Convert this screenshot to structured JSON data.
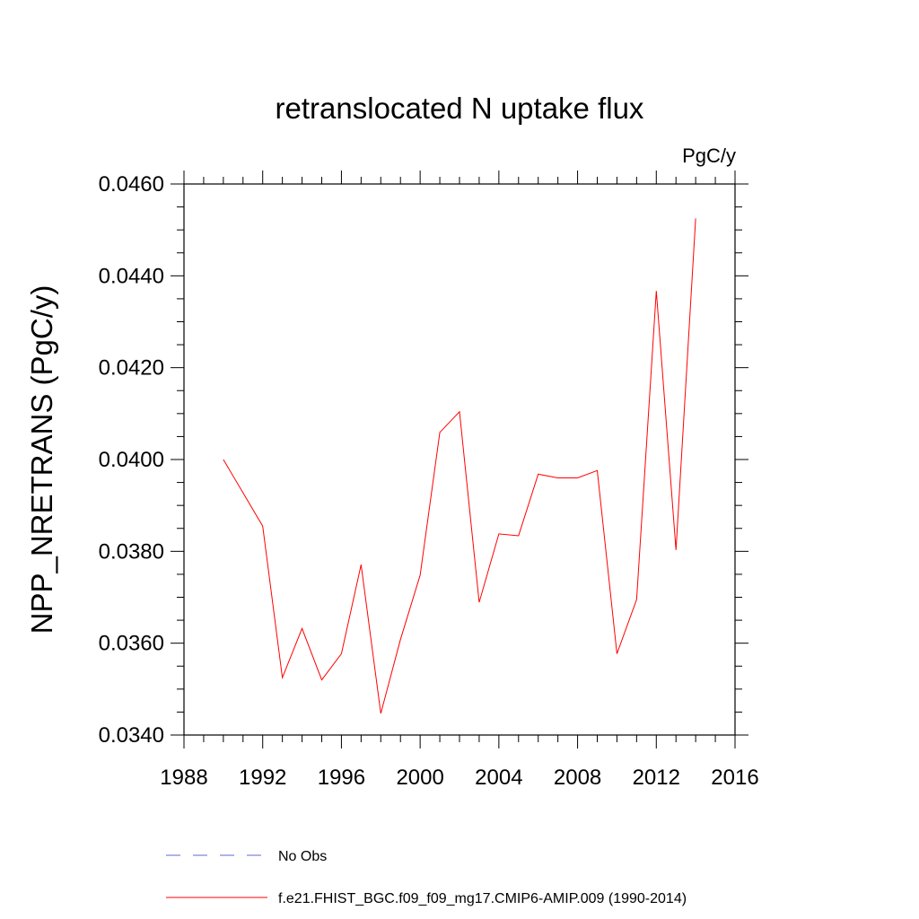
{
  "chart_data": {
    "type": "line",
    "title": "retranslocated N uptake flux",
    "units_label": "PgC/y",
    "xlabel": "",
    "ylabel": "NPP_NRETRANS  (PgC/y)",
    "xlim": [
      1988,
      2016
    ],
    "ylim": [
      0.034,
      0.046
    ],
    "x_ticks": [
      1988,
      1992,
      1996,
      2000,
      2004,
      2008,
      2012,
      2016
    ],
    "x_tick_labels": [
      "1988",
      "1992",
      "1996",
      "2000",
      "2004",
      "2008",
      "2012",
      "2016"
    ],
    "y_ticks": [
      0.034,
      0.036,
      0.038,
      0.04,
      0.042,
      0.044,
      0.046
    ],
    "y_tick_labels": [
      "0.0340",
      "0.0360",
      "0.0380",
      "0.0400",
      "0.0420",
      "0.0440",
      "0.0460"
    ],
    "grid": false,
    "legend_position": "bottom",
    "series": [
      {
        "name": "f.e21.FHIST_BGC.f09_f09_mg17.CMIP6-AMIP.009 (1990-2014)",
        "color": "#ff0000",
        "style": "solid",
        "x": [
          1990,
          1992,
          1993,
          1994,
          1995,
          1996,
          1997,
          1998,
          1999,
          2000,
          2001,
          2002,
          2003,
          2004,
          2005,
          2006,
          2007,
          2008,
          2009,
          2010,
          2011,
          2012,
          2013,
          2014
        ],
        "y": [
          0.04,
          0.03855,
          0.03525,
          0.03632,
          0.0352,
          0.03577,
          0.03771,
          0.03447,
          0.03608,
          0.03748,
          0.04059,
          0.04104,
          0.03689,
          0.03838,
          0.03834,
          0.03968,
          0.0396,
          0.0396,
          0.03976,
          0.03577,
          0.03695,
          0.04367,
          0.03803,
          0.04525
        ]
      }
    ],
    "legend": [
      {
        "label": "No Obs",
        "color": "#6666cc",
        "style": "dashed"
      },
      {
        "label": "f.e21.FHIST_BGC.f09_f09_mg17.CMIP6-AMIP.009 (1990-2014)",
        "color": "#ff0000",
        "style": "solid"
      }
    ]
  }
}
